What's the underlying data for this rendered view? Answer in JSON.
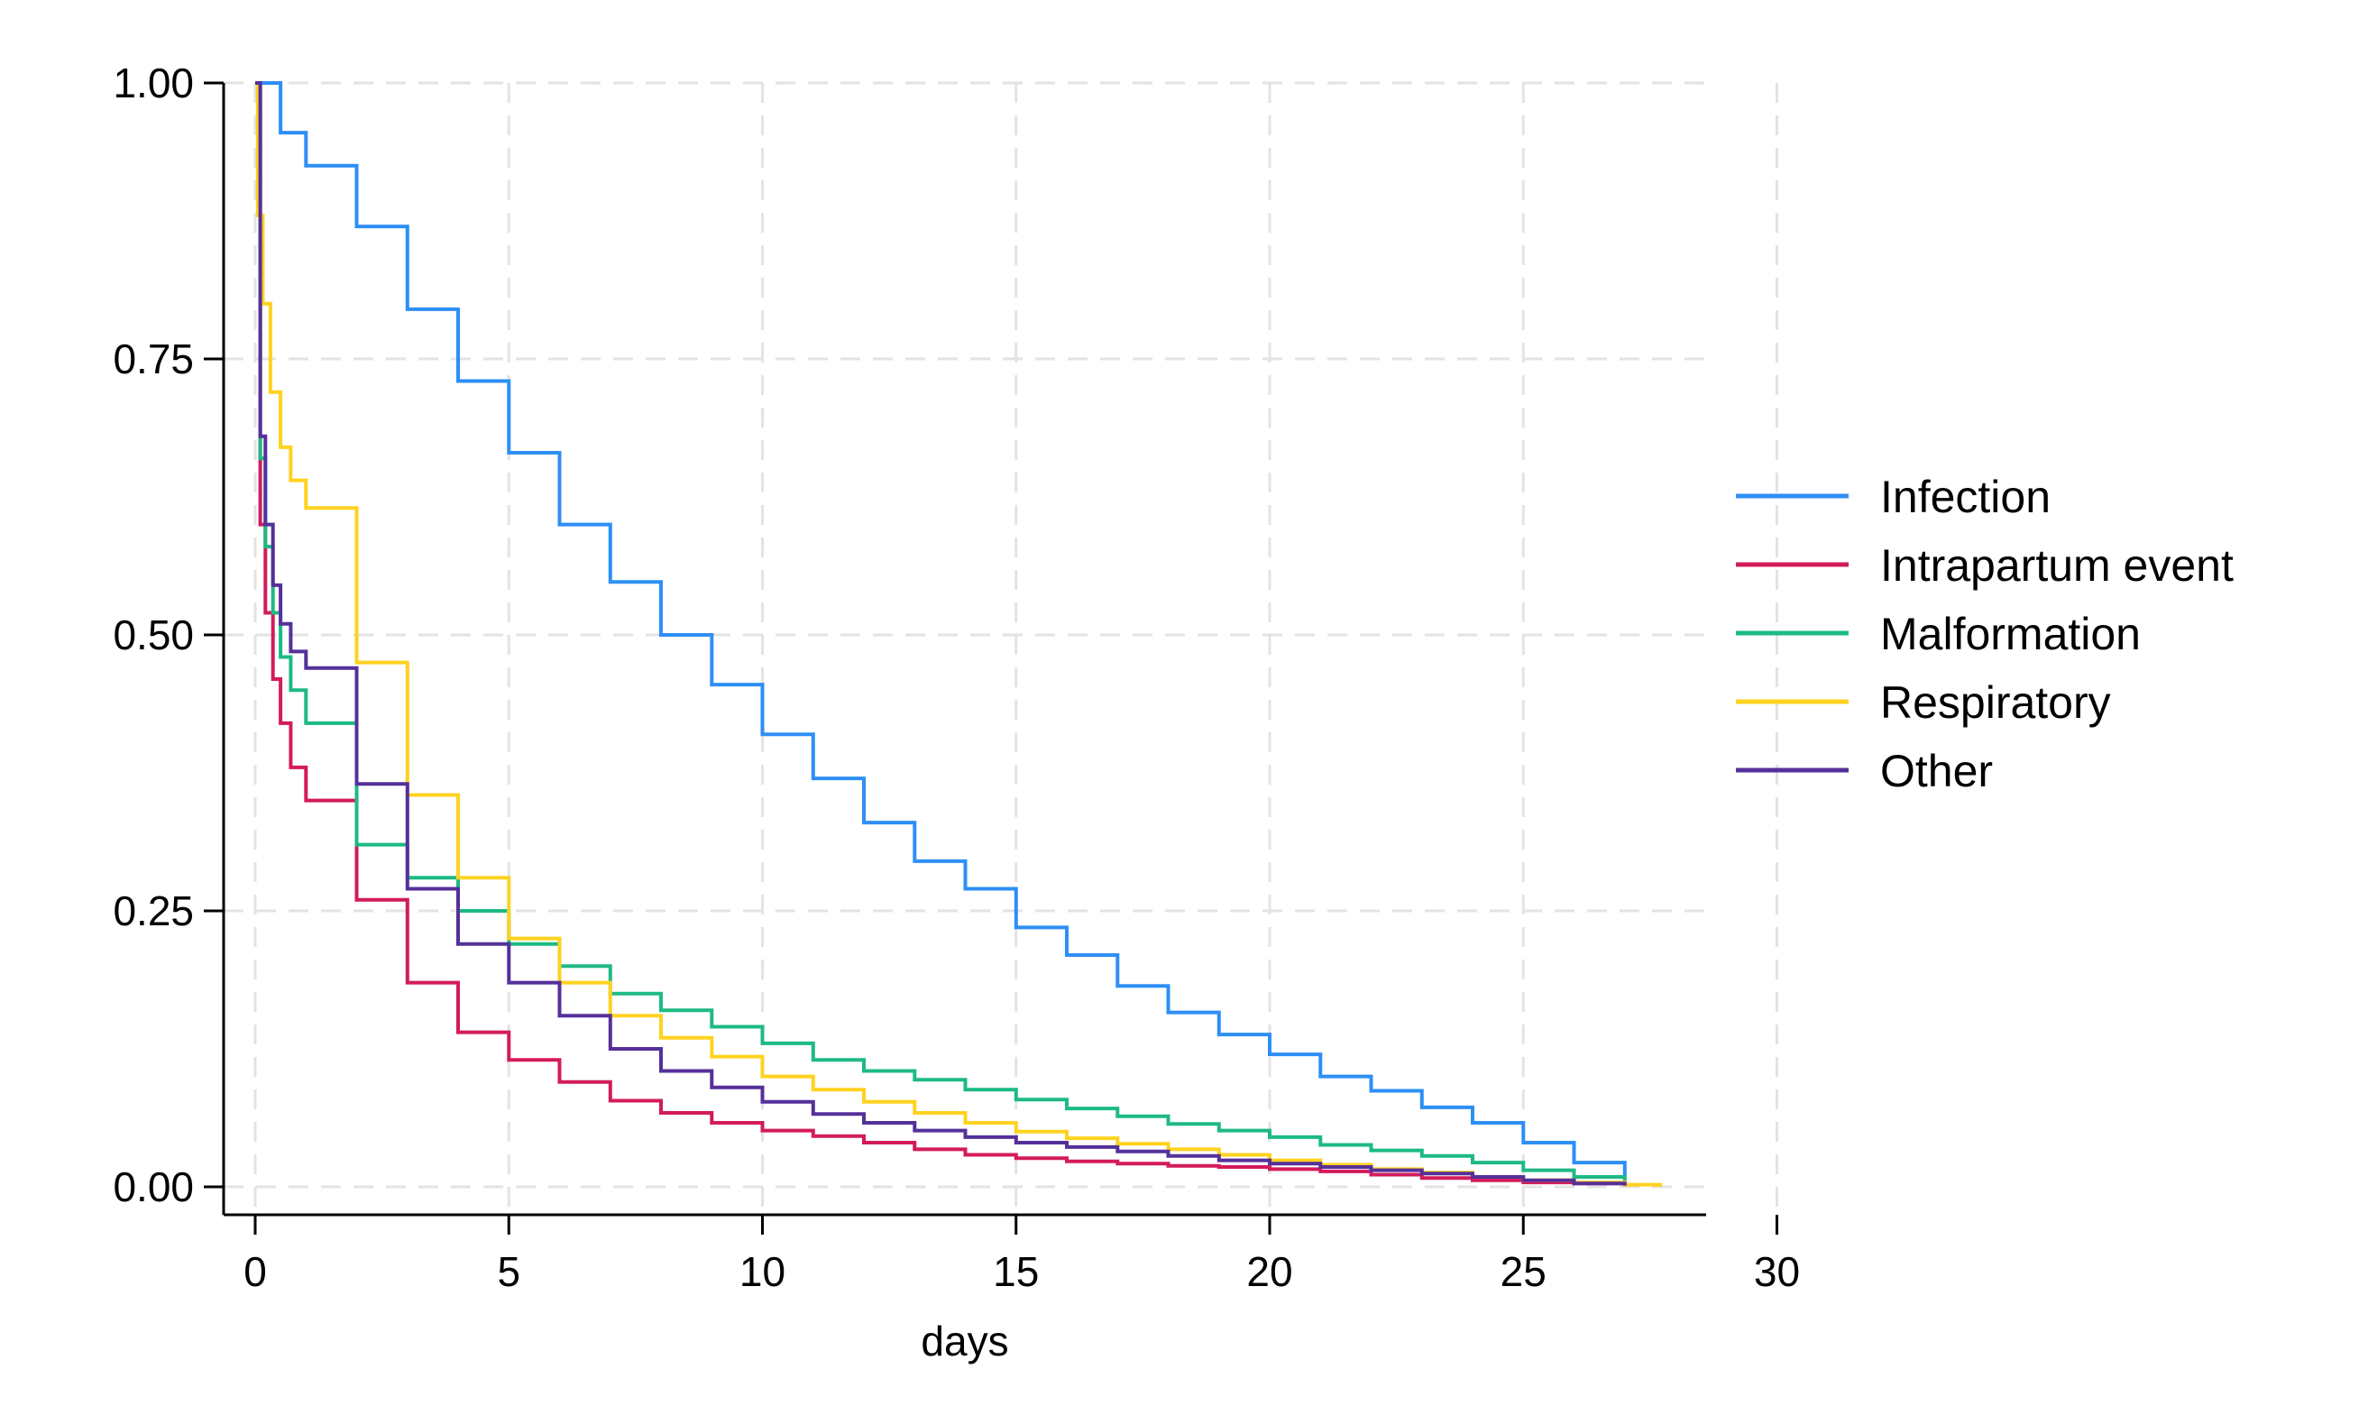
{
  "chart_data": {
    "type": "line",
    "title": "",
    "xlabel": "days",
    "ylabel": "",
    "xlim": [
      0,
      30
    ],
    "ylim": [
      0,
      1
    ],
    "x_ticks": [
      "0",
      "5",
      "10",
      "15",
      "20",
      "25",
      "30"
    ],
    "y_ticks": [
      "0.00",
      "0.25",
      "0.50",
      "0.75",
      "1.00"
    ],
    "grid": true,
    "legend_position": "right",
    "series": [
      {
        "name": "Infection",
        "color": "#2E8FF5",
        "x": [
          0,
          0.5,
          1,
          2,
          3,
          4,
          5,
          6,
          7,
          8,
          9,
          10,
          11,
          12,
          13,
          14,
          15,
          16,
          17,
          18,
          19,
          20,
          21,
          22,
          23,
          24,
          25,
          26,
          27
        ],
        "y": [
          1.0,
          0.955,
          0.925,
          0.87,
          0.795,
          0.73,
          0.665,
          0.6,
          0.548,
          0.5,
          0.455,
          0.41,
          0.37,
          0.33,
          0.295,
          0.27,
          0.235,
          0.21,
          0.182,
          0.158,
          0.138,
          0.12,
          0.1,
          0.087,
          0.072,
          0.058,
          0.04,
          0.022,
          0.01
        ]
      },
      {
        "name": "Intrapartum event",
        "color": "#D31B5C",
        "x": [
          0,
          0.1,
          0.2,
          0.35,
          0.5,
          0.7,
          1,
          2,
          3,
          4,
          5,
          6,
          7,
          8,
          9,
          10,
          11,
          12,
          13,
          14,
          15,
          16,
          17,
          18,
          19,
          20,
          21,
          22,
          23,
          24,
          25,
          26,
          27
        ],
        "y": [
          1.0,
          0.6,
          0.52,
          0.46,
          0.42,
          0.38,
          0.35,
          0.26,
          0.185,
          0.14,
          0.115,
          0.095,
          0.078,
          0.067,
          0.058,
          0.051,
          0.046,
          0.04,
          0.034,
          0.029,
          0.026,
          0.023,
          0.021,
          0.019,
          0.018,
          0.016,
          0.014,
          0.011,
          0.008,
          0.006,
          0.004,
          0.003,
          0.001
        ]
      },
      {
        "name": "Malformation",
        "color": "#1DBA84",
        "x": [
          0,
          0.1,
          0.2,
          0.35,
          0.5,
          0.7,
          1,
          2,
          3,
          4,
          5,
          6,
          7,
          8,
          9,
          10,
          11,
          12,
          13,
          14,
          15,
          16,
          17,
          18,
          19,
          20,
          21,
          22,
          23,
          24,
          25,
          26,
          27
        ],
        "y": [
          1.0,
          0.66,
          0.58,
          0.52,
          0.48,
          0.45,
          0.42,
          0.31,
          0.28,
          0.25,
          0.22,
          0.2,
          0.175,
          0.16,
          0.145,
          0.13,
          0.115,
          0.105,
          0.097,
          0.088,
          0.079,
          0.071,
          0.064,
          0.057,
          0.051,
          0.045,
          0.038,
          0.033,
          0.028,
          0.022,
          0.015,
          0.009,
          0.004
        ]
      },
      {
        "name": "Respiratory",
        "color": "#FFD21F",
        "x": [
          0,
          0.05,
          0.15,
          0.3,
          0.5,
          0.7,
          1,
          2,
          3,
          4,
          5,
          6,
          7,
          8,
          9,
          10,
          11,
          12,
          13,
          14,
          15,
          16,
          17,
          18,
          19,
          20,
          21,
          22,
          23,
          24,
          25,
          26,
          27,
          27.7
        ],
        "y": [
          1.0,
          0.88,
          0.8,
          0.72,
          0.67,
          0.64,
          0.615,
          0.475,
          0.355,
          0.28,
          0.225,
          0.185,
          0.155,
          0.135,
          0.118,
          0.1,
          0.088,
          0.077,
          0.067,
          0.058,
          0.05,
          0.044,
          0.039,
          0.034,
          0.029,
          0.024,
          0.02,
          0.016,
          0.013,
          0.009,
          0.006,
          0.004,
          0.002,
          0.0
        ]
      },
      {
        "name": "Other",
        "color": "#55309A",
        "x": [
          0,
          0.1,
          0.2,
          0.35,
          0.5,
          0.7,
          1,
          2,
          3,
          4,
          5,
          6,
          7,
          8,
          9,
          10,
          11,
          12,
          13,
          14,
          15,
          16,
          17,
          18,
          19,
          20,
          21,
          22,
          23,
          24,
          25,
          26,
          27
        ],
        "y": [
          1.0,
          0.68,
          0.6,
          0.545,
          0.51,
          0.485,
          0.47,
          0.365,
          0.27,
          0.22,
          0.185,
          0.155,
          0.125,
          0.105,
          0.09,
          0.077,
          0.066,
          0.058,
          0.051,
          0.045,
          0.04,
          0.036,
          0.032,
          0.028,
          0.024,
          0.021,
          0.018,
          0.015,
          0.012,
          0.009,
          0.006,
          0.003,
          0.001
        ]
      }
    ]
  }
}
